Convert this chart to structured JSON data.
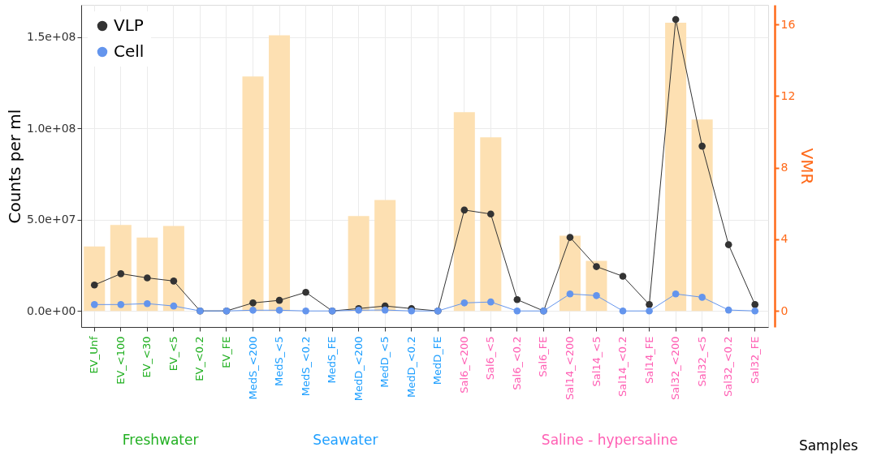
{
  "chart_data": {
    "type": "bar",
    "xlabel": "Samples",
    "ylabel": "Counts per ml",
    "y2label": "VMR",
    "categories": [
      "EV_Unf",
      "EV_<100",
      "EV_<30",
      "EV_<5",
      "EV_<0.2",
      "EV_FE",
      "MedS_<200",
      "MedS_<5",
      "MedS_<0.2",
      "MedS_FE",
      "MedD_<200",
      "MedD_<5",
      "MedD_<0.2",
      "MedD_FE",
      "Sal6_<200",
      "Sal6_<5",
      "Sal6_<0.2",
      "Sal6_FE",
      "Sal14_<200",
      "Sal14_<5",
      "Sal14_<0.2",
      "Sal14_FE",
      "Sal32_<200",
      "Sal32_<5",
      "Sal32_<0.2",
      "Sal32_FE"
    ],
    "series": [
      {
        "axis": "y2",
        "color": "#fde0b2",
        "values": [
          3.6,
          4.8,
          4.1,
          4.75,
          null,
          null,
          13.1,
          15.4,
          null,
          null,
          5.3,
          6.2,
          null,
          null,
          11.1,
          9.7,
          null,
          null,
          4.2,
          2.8,
          null,
          null,
          16.1,
          10.7,
          null,
          null
        ]
      },
      {
        "type": "line",
        "name": "VLP",
        "color": "#333333",
        "values": [
          14200000,
          20400000,
          18100000,
          16400000,
          0,
          0,
          4400000,
          5800000,
          10200000,
          0,
          1300000,
          2700000,
          1300000,
          0,
          55300000,
          53100000,
          6200000,
          0,
          40300000,
          24300000,
          19000000,
          3500000,
          159700000,
          90300000,
          36300000,
          3500000
        ]
      },
      {
        "type": "line",
        "name": "Cell",
        "color": "#6495ed",
        "values": [
          3500000,
          3500000,
          4000000,
          2700000,
          0,
          0,
          400000,
          400000,
          0,
          0,
          400000,
          500000,
          0,
          0,
          4400000,
          4900000,
          0,
          0,
          9300000,
          8400000,
          0,
          0,
          9300000,
          7500000,
          500000,
          0
        ]
      }
    ],
    "ylim": [
      -8800000,
      167700000
    ],
    "yticks": [
      {
        "value": 0,
        "label": "0.0e+00"
      },
      {
        "value": 50000000,
        "label": "5.0e+07"
      },
      {
        "value": 100000000,
        "label": "1.0e+08"
      },
      {
        "value": 150000000,
        "label": "1.5e+08"
      }
    ],
    "y2lim": [
      -0.9,
      17.1
    ],
    "y2ticks": [
      0,
      4,
      8,
      12,
      16
    ],
    "annotations": [
      "Freshwater",
      "Seawater",
      "Saline - hypersaline"
    ],
    "grid": true,
    "legend": "top left",
    "marker": "circle",
    "line_style": "solid"
  }
}
